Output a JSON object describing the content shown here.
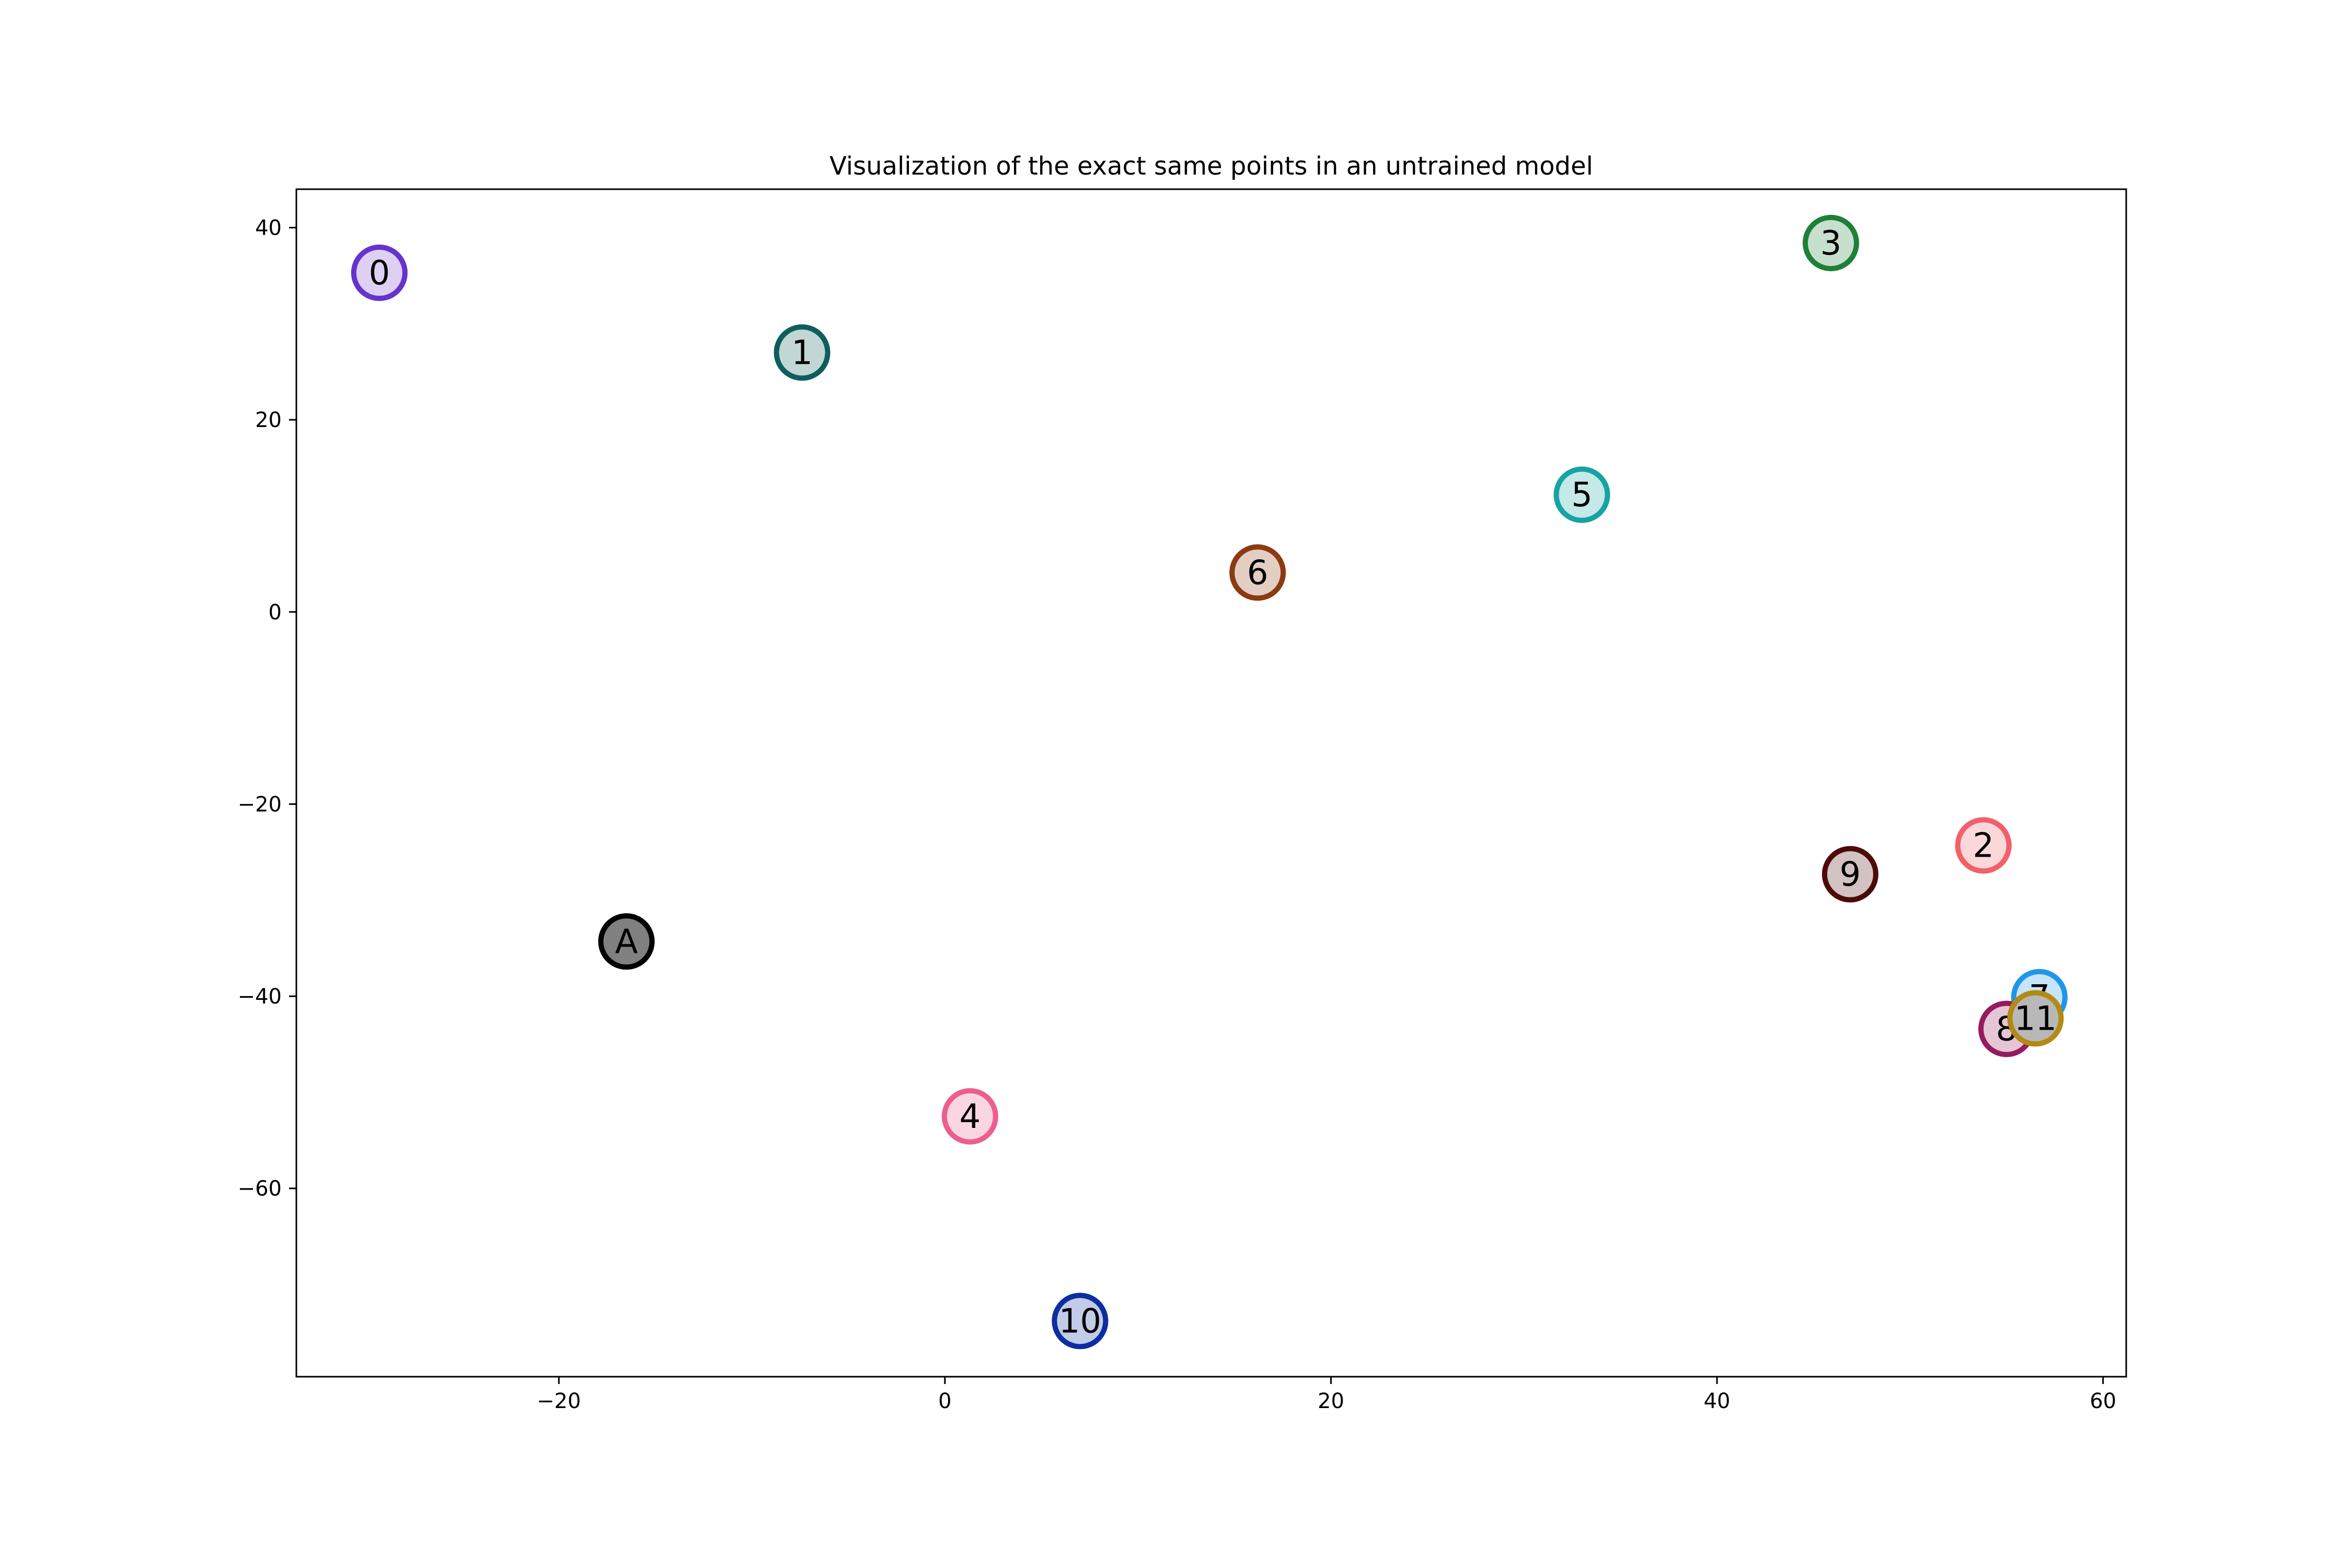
{
  "chart_data": {
    "type": "scatter",
    "title": "Visualization of the exact same points in an untrained model",
    "xlabel": "",
    "ylabel": "",
    "xlim": [
      -33.6,
      61.2
    ],
    "ylim": [
      -79.6,
      44.0
    ],
    "xticks": [
      -20,
      0,
      20,
      40,
      60
    ],
    "yticks": [
      -60,
      -40,
      -20,
      0,
      20,
      40
    ],
    "xtick_labels": [
      "−20",
      "0",
      "20",
      "40",
      "60"
    ],
    "ytick_labels": [
      "−60",
      "−40",
      "−20",
      "0",
      "20",
      "40"
    ],
    "grid": false,
    "legend": "none",
    "points": [
      {
        "label": "0",
        "x": -29.3,
        "y": 35.3,
        "edge": "#6633cc",
        "fill": "#ddd0f3"
      },
      {
        "label": "1",
        "x": -7.4,
        "y": 27.0,
        "edge": "#0f5e5e",
        "fill": "#c3d6d6"
      },
      {
        "label": "2",
        "x": 53.8,
        "y": -24.3,
        "edge": "#f2606a",
        "fill": "#fcd7da"
      },
      {
        "label": "3",
        "x": 45.9,
        "y": 38.4,
        "edge": "#1e8038",
        "fill": "#c7dfcd"
      },
      {
        "label": "4",
        "x": 1.3,
        "y": -52.5,
        "edge": "#ec5e8e",
        "fill": "#fad6e2"
      },
      {
        "label": "5",
        "x": 33.0,
        "y": 12.2,
        "edge": "#16a3a3",
        "fill": "#c5e8e8"
      },
      {
        "label": "6",
        "x": 16.2,
        "y": 4.1,
        "edge": "#8c3a10",
        "fill": "#e2cec3"
      },
      {
        "label": "7",
        "x": 56.7,
        "y": -40.1,
        "edge": "#2196e8",
        "fill": "#c8e4f9"
      },
      {
        "label": "8",
        "x": 55.0,
        "y": -43.4,
        "edge": "#951b5e",
        "fill": "#e4c6d6"
      },
      {
        "label": "9",
        "x": 46.9,
        "y": -27.3,
        "edge": "#4d0a0a",
        "fill": "#d3c2c2"
      },
      {
        "label": "10",
        "x": 7.0,
        "y": -73.8,
        "edge": "#0c2ea0",
        "fill": "#c2cbe7"
      },
      {
        "label": "11",
        "x": 56.5,
        "y": -42.3,
        "edge": "#b28a14",
        "fill": "#b8b8b8"
      },
      {
        "label": "A",
        "x": -16.5,
        "y": -34.3,
        "edge": "#000000",
        "fill": "#808080"
      }
    ]
  }
}
